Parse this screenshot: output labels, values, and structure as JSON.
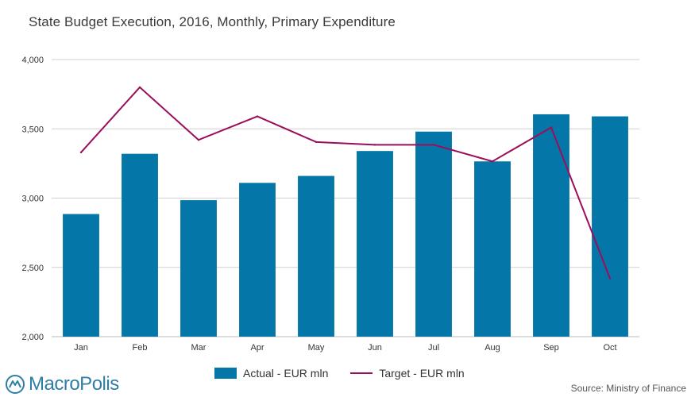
{
  "colors": {
    "bar": "#0576a8",
    "line": "#9b0f5a",
    "grid": "#d0d0d0",
    "axis": "#bbbbbb"
  },
  "chart_data": {
    "type": "bar",
    "title": "State Budget Execution, 2016, Monthly, Primary Expenditure",
    "categories": [
      "Jan",
      "Feb",
      "Mar",
      "Apr",
      "May",
      "Jun",
      "Jul",
      "Aug",
      "Sep",
      "Oct"
    ],
    "ylim": [
      2000,
      4000
    ],
    "yticks": [
      2000,
      2500,
      3000,
      3500,
      4000
    ],
    "ytick_labels": [
      "2,000",
      "2,500",
      "3,000",
      "3,500",
      "4,000"
    ],
    "xlabel": "",
    "ylabel": "",
    "grid": true,
    "series": [
      {
        "name": "Actual - EUR mln",
        "type": "bar",
        "values": [
          2885,
          3320,
          2985,
          3110,
          3160,
          3340,
          3480,
          3265,
          3605,
          3590
        ]
      },
      {
        "name": "Target - EUR mln",
        "type": "line",
        "values": [
          3330,
          3800,
          3420,
          3590,
          3405,
          3385,
          3385,
          3265,
          3510,
          2420
        ]
      }
    ],
    "legend_position": "bottom"
  },
  "logo": {
    "text": "MacroPolis"
  },
  "source": "Source: Ministry of Finance"
}
